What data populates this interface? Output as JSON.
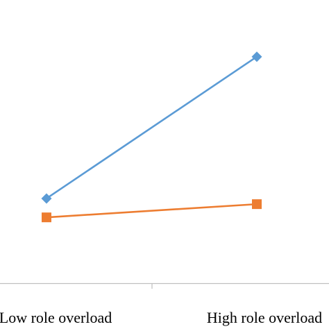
{
  "chart_data": {
    "type": "line",
    "categories": [
      "Low role overload",
      "High role overload"
    ],
    "series": [
      {
        "values": [
          3.2,
          4.7
        ],
        "color": "#5b9bd5",
        "marker": "diamond"
      },
      {
        "values": [
          3.0,
          3.14
        ],
        "color": "#ed7d31",
        "marker": "square"
      }
    ],
    "ylim": [
      2.3,
      5.3
    ],
    "grid": false,
    "legend": "none",
    "title": "",
    "xlabel": "",
    "ylabel": ""
  }
}
